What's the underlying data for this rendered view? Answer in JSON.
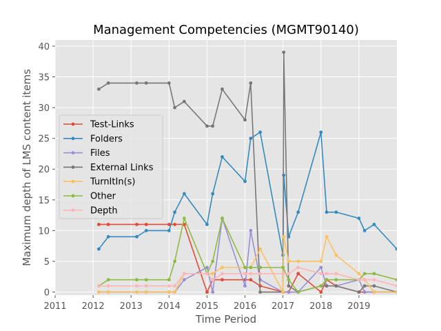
{
  "chart_data": {
    "type": "line",
    "title": "Management Competencies (MGMT90140)",
    "xlabel": "Time Period",
    "ylabel": "Maximum depth of LMS content items",
    "xlim": [
      2011,
      2020
    ],
    "ylim": [
      0,
      40
    ],
    "x_ticks": [
      "2011",
      "2012",
      "2013",
      "2014",
      "2015",
      "2016",
      "2017",
      "2018",
      "2019"
    ],
    "y_ticks": [
      "0",
      "5",
      "10",
      "15",
      "20",
      "25",
      "30",
      "35",
      "40"
    ],
    "grid": true,
    "legend_position": "center-left",
    "series": [
      {
        "name": "Test-Links",
        "color": "#e24a33",
        "x": [
          2012.15,
          2012.4,
          2013.15,
          2013.4,
          2014.0,
          2014.15,
          2014.4,
          2015.0,
          2015.15,
          2015.4,
          2016.0,
          2016.15,
          2016.4,
          2017.0,
          2017.15,
          2017.4,
          2018.0,
          2018.15,
          2018.4,
          2019.0,
          2019.15,
          2019.4,
          2020.0
        ],
        "y": [
          11,
          11,
          11,
          11,
          11,
          11,
          11,
          0,
          2,
          2,
          2,
          2,
          1,
          0,
          0,
          3,
          0,
          2,
          1,
          0,
          0,
          0,
          0
        ]
      },
      {
        "name": "Folders",
        "color": "#348abd",
        "x": [
          2012.15,
          2012.4,
          2013.15,
          2013.4,
          2014.0,
          2014.15,
          2014.4,
          2015.0,
          2015.15,
          2015.4,
          2016.0,
          2016.15,
          2016.4,
          2017.0,
          2017.02,
          2017.15,
          2017.4,
          2018.0,
          2018.15,
          2018.4,
          2019.0,
          2019.15,
          2019.4,
          2020.0
        ],
        "y": [
          7,
          9,
          9,
          10,
          10,
          13,
          16,
          11,
          16,
          22,
          18,
          25,
          26,
          6,
          19,
          9,
          13,
          26,
          13,
          13,
          12,
          10,
          11,
          7
        ]
      },
      {
        "name": "Files",
        "color": "#988ed5",
        "x": [
          2012.15,
          2012.4,
          2013.15,
          2013.4,
          2014.0,
          2014.15,
          2014.4,
          2015.0,
          2015.15,
          2015.4,
          2016.0,
          2016.15,
          2016.4,
          2017.0,
          2017.15,
          2017.4,
          2018.0,
          2018.15,
          2018.4,
          2019.0,
          2019.15,
          2019.4,
          2020.0
        ],
        "y": [
          0,
          0,
          0,
          0,
          0,
          0,
          2,
          4,
          0,
          12,
          1,
          10,
          2,
          0,
          0,
          0,
          4,
          1,
          1,
          2,
          0,
          0,
          0
        ]
      },
      {
        "name": "External Links",
        "color": "#777777",
        "x": [
          2012.15,
          2012.4,
          2013.15,
          2013.4,
          2014.0,
          2014.15,
          2014.4,
          2015.0,
          2015.15,
          2015.4,
          2016.0,
          2016.15,
          2016.4,
          2017.0,
          2017.02,
          2017.15,
          2017.4,
          2018.0,
          2018.15,
          2018.4,
          2019.0,
          2019.15,
          2019.4,
          2020.0
        ],
        "y": [
          33,
          34,
          34,
          34,
          34,
          30,
          31,
          27,
          27,
          33,
          28,
          34,
          0,
          0,
          39,
          1,
          0,
          1,
          1,
          1,
          0,
          1,
          1,
          0
        ]
      },
      {
        "name": "TurnItIn(s)",
        "color": "#fbc15e",
        "x": [
          2012.15,
          2012.4,
          2013.15,
          2013.4,
          2014.0,
          2014.15,
          2014.4,
          2015.0,
          2015.15,
          2015.4,
          2016.0,
          2016.15,
          2016.4,
          2017.0,
          2017.02,
          2017.15,
          2017.4,
          2018.0,
          2018.15,
          2018.4,
          2019.0,
          2019.15,
          2019.4,
          2020.0
        ],
        "y": [
          0,
          0,
          0,
          0,
          0,
          0,
          3,
          3,
          3,
          4,
          4,
          4,
          7,
          0,
          9,
          5,
          5,
          5,
          9,
          6,
          3,
          2,
          0,
          0
        ]
      },
      {
        "name": "Other",
        "color": "#8eba42",
        "x": [
          2012.15,
          2012.4,
          2013.15,
          2013.4,
          2014.0,
          2014.15,
          2014.4,
          2015.0,
          2015.15,
          2015.4,
          2016.0,
          2016.15,
          2016.4,
          2017.0,
          2017.15,
          2017.4,
          2018.0,
          2018.15,
          2018.4,
          2019.0,
          2019.15,
          2019.4,
          2020.0
        ],
        "y": [
          1,
          2,
          2,
          2,
          2,
          5,
          12,
          3,
          5,
          12,
          4,
          4,
          4,
          4,
          2,
          0,
          1,
          2,
          2,
          2,
          3,
          3,
          2
        ]
      },
      {
        "name": "Depth",
        "color": "#ffb5b8",
        "x": [
          2012.15,
          2012.4,
          2013.15,
          2013.4,
          2014.0,
          2014.15,
          2014.4,
          2015.0,
          2015.15,
          2015.4,
          2016.0,
          2016.15,
          2016.4,
          2017.0,
          2017.15,
          2017.4,
          2018.0,
          2018.15,
          2018.4,
          2019.0,
          2019.15,
          2019.4,
          2020.0
        ],
        "y": [
          1,
          1,
          1,
          1,
          1,
          1,
          3,
          3,
          2,
          3,
          3,
          3,
          3,
          3,
          3,
          4,
          3,
          3,
          3,
          2,
          2,
          2,
          1
        ]
      }
    ]
  }
}
